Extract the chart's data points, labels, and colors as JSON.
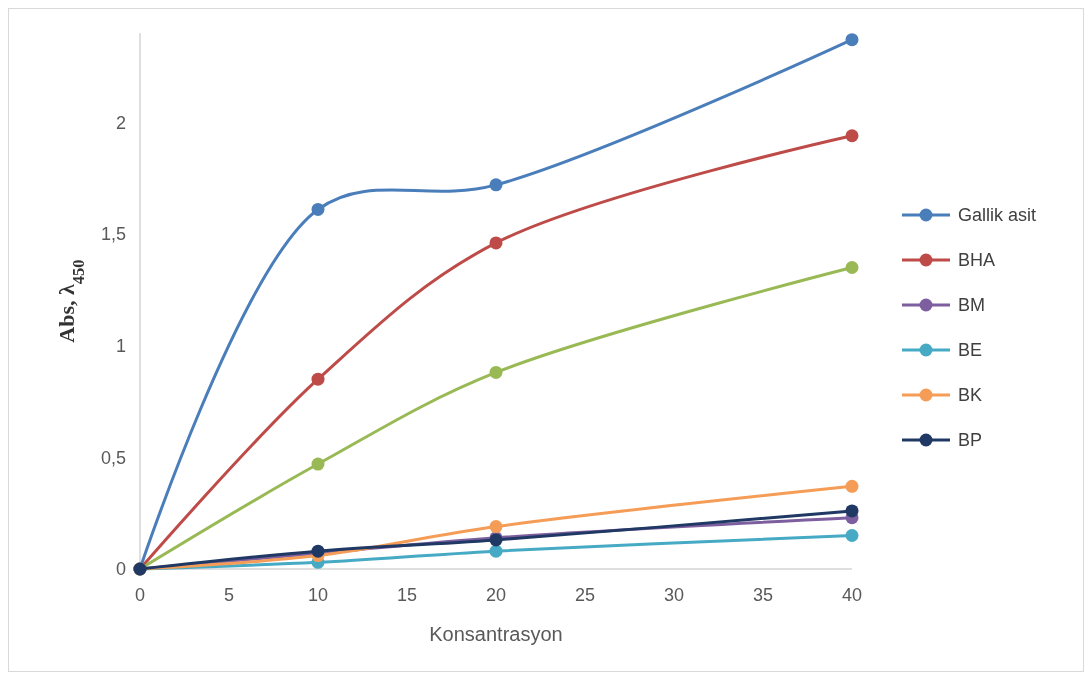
{
  "chart_data": {
    "type": "line",
    "xlabel": "Konsantrasyon",
    "ylabel": "Abs, λ$_{450}$",
    "x": [
      0,
      10,
      20,
      40
    ],
    "xlim": [
      0,
      40
    ],
    "xticks": [
      0,
      5,
      10,
      15,
      20,
      25,
      30,
      35,
      40
    ],
    "ylim": [
      0,
      2.4
    ],
    "yticks": [
      0,
      {
        "value": 0.5,
        "label": "0,5"
      },
      1,
      {
        "value": 1.5,
        "label": "1,5"
      },
      2
    ],
    "grid": false,
    "legend": "right",
    "marker": "circle",
    "line_style": "solid",
    "series": [
      {
        "name": "Gallik asit",
        "color": "#4a7ebb",
        "values": [
          0,
          1.61,
          1.72,
          2.37
        ]
      },
      {
        "name": "BHA",
        "color": "#be4b48",
        "values": [
          0,
          0.85,
          1.46,
          1.94
        ]
      },
      {
        "color": "#98b954",
        "values": [
          0,
          0.47,
          0.88,
          1.35
        ]
      },
      {
        "name": "BM",
        "color": "#7d5fa0",
        "values": [
          0,
          0.07,
          0.14,
          0.23
        ]
      },
      {
        "name": "BE",
        "color": "#46aac5",
        "values": [
          0,
          0.03,
          0.08,
          0.15
        ]
      },
      {
        "name": "BK",
        "color": "#f59d56",
        "values": [
          0,
          0.06,
          0.19,
          0.37
        ]
      },
      {
        "name": "BP",
        "color": "#1f3864",
        "values": [
          0,
          0.08,
          0.13,
          0.26
        ]
      }
    ]
  }
}
